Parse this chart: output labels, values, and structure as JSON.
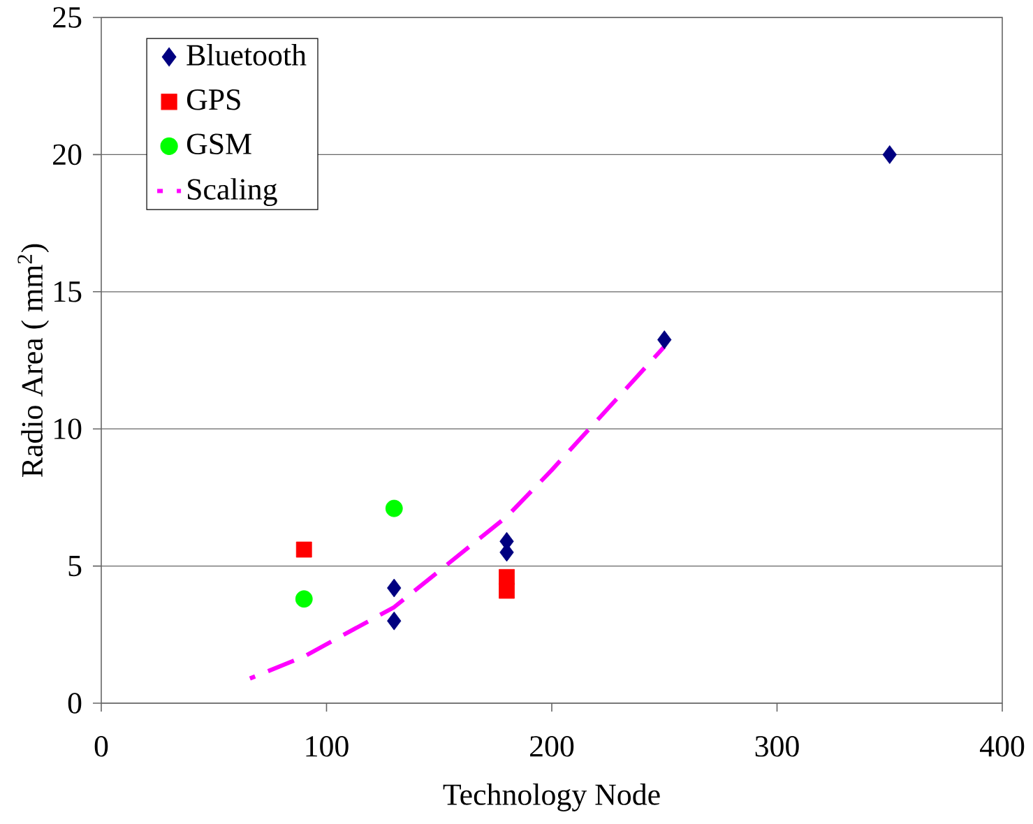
{
  "chart_data": {
    "type": "scatter",
    "xlabel": "Technology Node",
    "ylabel": "Radio Area ( mm$^{2}$)",
    "xlim": [
      0,
      400
    ],
    "xticks": [
      0,
      100,
      200,
      300,
      400
    ],
    "ylim": [
      0,
      25
    ],
    "yticks": [
      0,
      5,
      10,
      15,
      20,
      25
    ],
    "grid": "y",
    "legend": "top left",
    "series": [
      {
        "name": "Bluetooth",
        "color": "#000080",
        "marker": "diamond",
        "x": [
          350,
          250,
          180,
          180,
          130,
          130
        ],
        "values": [
          20,
          13.25,
          5.9,
          5.5,
          4.2,
          3.0
        ]
      },
      {
        "name": "GPS",
        "color": "#ff0000",
        "marker": "square",
        "x": [
          90,
          180,
          180
        ],
        "values": [
          5.6,
          4.6,
          4.1
        ]
      },
      {
        "name": "GSM",
        "color": "#00ff00",
        "marker": "circle",
        "x": [
          90,
          130
        ],
        "values": [
          3.8,
          7.1
        ]
      },
      {
        "name": "Scaling",
        "type": "line",
        "color": "#ff00ff",
        "marker": "none",
        "line_style": "dashed",
        "x": [
          66,
          90,
          130,
          180,
          200,
          250
        ],
        "values": [
          0.9,
          1.7,
          3.5,
          6.8,
          8.5,
          13.0
        ]
      }
    ]
  }
}
